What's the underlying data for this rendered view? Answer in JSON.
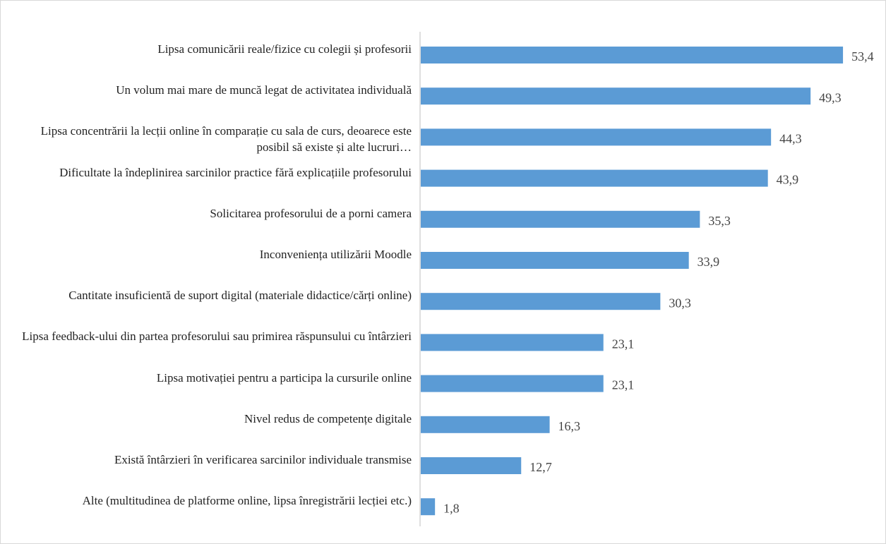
{
  "chart_data": {
    "type": "bar",
    "orientation": "horizontal",
    "categories": [
      "Lipsa comunicării reale/fizice  cu colegii și profesorii",
      "Un volum mai mare de muncă legat de activitatea individuală",
      "Lipsa concentrării la lecții online în comparație cu sala de curs, deoarece este posibil să existe și alte lucruri…",
      "Dificultate la îndeplinirea sarcinilor practice fără explicațiile  profesorului",
      "Solicitarea profesorului de a porni camera",
      "Inconveniența utilizării  Moodle",
      "Cantitate insuficientă de suport digital (materiale didactice/cărți online)",
      "Lipsa feedback-ului din partea profesorului sau primirea răspunsului cu întârzieri",
      "Lipsa  motivației  pentru a participa la cursurile online",
      "Nivel redus de competențe digitale",
      "Există întârzieri în verificarea sarcinilor individuale transmise",
      "Alte (multitudinea  de platforme  online, lipsa înregistrării lecției etc.)"
    ],
    "values": [
      53.4,
      49.3,
      44.3,
      43.9,
      35.3,
      33.9,
      30.3,
      23.1,
      23.1,
      16.3,
      12.7,
      1.8
    ],
    "value_labels": [
      "53,4",
      "49,3",
      "44,3",
      "43,9",
      "35,3",
      "33,9",
      "30,3",
      "23,1",
      "23,1",
      "16,3",
      "12,7",
      "1,8"
    ],
    "color": "#5b9bd5"
  }
}
